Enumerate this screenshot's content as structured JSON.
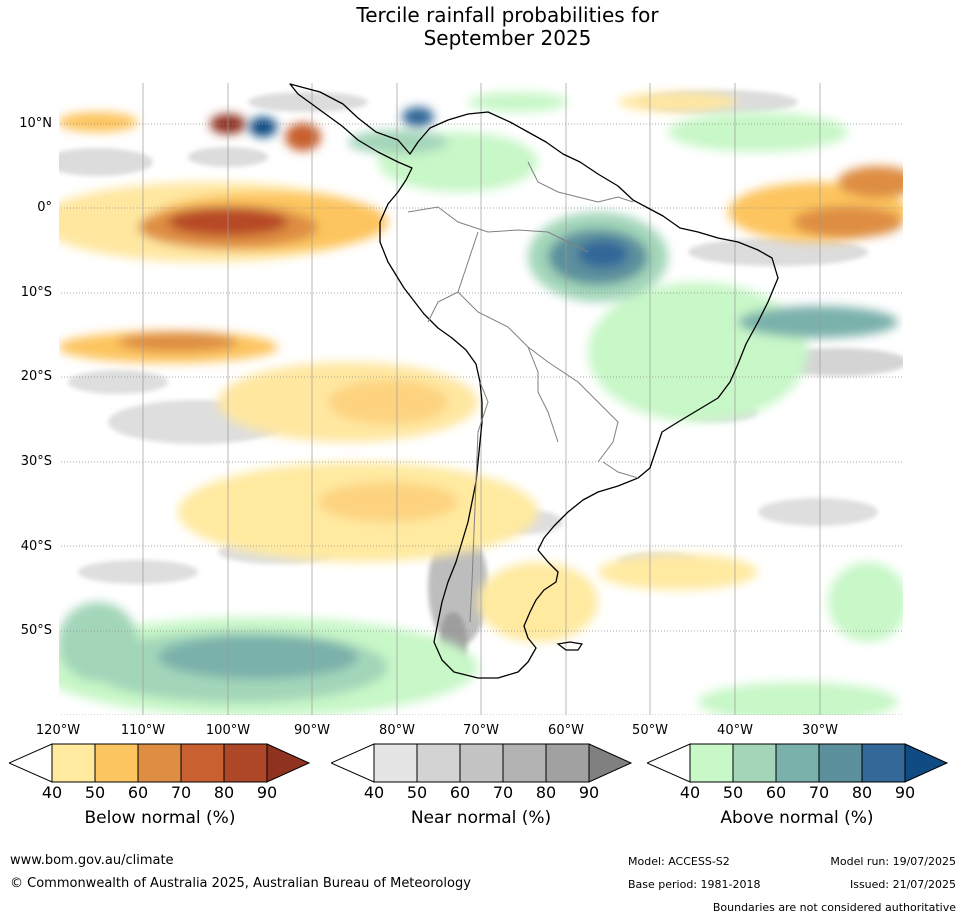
{
  "title_line1": "Tercile rainfall probabilities for",
  "title_line2": "September 2025",
  "map": {
    "lat_labels": [
      "10°N",
      "0°",
      "10°S",
      "20°S",
      "30°S",
      "40°S",
      "50°S"
    ],
    "lon_labels": [
      "120°W",
      "110°W",
      "100°W",
      "90°W",
      "80°W",
      "70°W",
      "60°W",
      "50°W",
      "40°W",
      "30°W"
    ]
  },
  "legends": [
    {
      "name": "Below normal (%)",
      "ticks": [
        "40",
        "50",
        "60",
        "70",
        "80",
        "90"
      ],
      "colors": [
        "#ffeaa0",
        "#fdc55f",
        "#de8e42",
        "#c8602f",
        "#ad4727",
        "#8f3320"
      ]
    },
    {
      "name": "Near normal (%)",
      "ticks": [
        "40",
        "50",
        "60",
        "70",
        "80",
        "90"
      ],
      "colors": [
        "#e5e5e5",
        "#d3d3d3",
        "#c4c4c4",
        "#b3b3b3",
        "#a1a1a1",
        "#808080"
      ]
    },
    {
      "name": "Above normal (%)",
      "ticks": [
        "40",
        "50",
        "60",
        "70",
        "80",
        "90"
      ],
      "colors": [
        "#c8f7c8",
        "#a3d6b9",
        "#7ab1ab",
        "#5c909d",
        "#336899",
        "#104b83"
      ]
    }
  ],
  "footer": {
    "url": "www.bom.gov.au/climate",
    "copyright": "© Commonwealth of Australia 2025, Australian Bureau of Meteorology",
    "model": "Model: ACCESS-S2",
    "base_period": "Base period: 1981-2018",
    "model_run": "Model run: 19/07/2025",
    "issued": "Issued: 21/07/2025",
    "disclaimer": "Boundaries are not considered authoritative"
  }
}
